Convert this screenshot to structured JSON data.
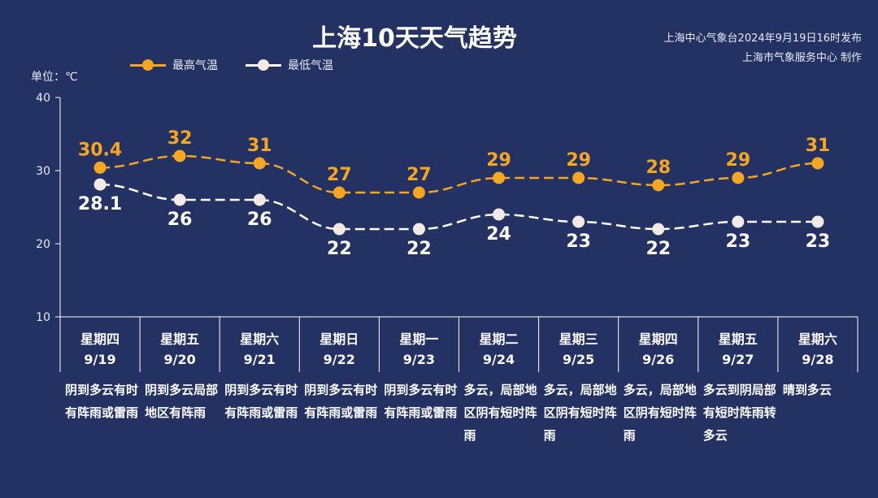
{
  "title": "上海10天天气趋势",
  "source": {
    "line1": "上海中心气象台2024年9月19日16时发布",
    "line2": "上海市气象服务中心 制作"
  },
  "unit_label": "单位：℃",
  "legend": {
    "high": "最高气温",
    "low": "最低气温"
  },
  "colors": {
    "background": "#243163",
    "high": "#f5a623",
    "low": "#ffffff",
    "low_marker": "#f3e9e6"
  },
  "days": [
    {
      "weekday": "星期四",
      "date": "9/19",
      "weather": "阴到多云有时有阵雨或雷雨"
    },
    {
      "weekday": "星期五",
      "date": "9/20",
      "weather": "阴到多云局部地区有阵雨"
    },
    {
      "weekday": "星期六",
      "date": "9/21",
      "weather": "阴到多云有时有阵雨或雷雨"
    },
    {
      "weekday": "星期日",
      "date": "9/22",
      "weather": "阴到多云有时有阵雨或雷雨"
    },
    {
      "weekday": "星期一",
      "date": "9/23",
      "weather": "阴到多云有时有阵雨或雷雨"
    },
    {
      "weekday": "星期二",
      "date": "9/24",
      "weather": "多云，局部地区阴有短时阵雨"
    },
    {
      "weekday": "星期三",
      "date": "9/25",
      "weather": "多云，局部地区阴有短时阵雨"
    },
    {
      "weekday": "星期四",
      "date": "9/26",
      "weather": "多云，局部地区阴有短时阵雨"
    },
    {
      "weekday": "星期五",
      "date": "9/27",
      "weather": "多云到阴局部有短时阵雨转多云"
    },
    {
      "weekday": "星期六",
      "date": "9/28",
      "weather": "晴到多云"
    }
  ],
  "chart_data": {
    "type": "line",
    "categories": [
      "9/19",
      "9/20",
      "9/21",
      "9/22",
      "9/23",
      "9/24",
      "9/25",
      "9/26",
      "9/27",
      "9/28"
    ],
    "series": [
      {
        "name": "最高气温",
        "values": [
          30.4,
          32,
          31,
          27,
          27,
          29,
          29,
          28,
          29,
          31
        ],
        "labels": [
          "30.4",
          "32",
          "31",
          "27",
          "27",
          "29",
          "29",
          "28",
          "29",
          "31"
        ]
      },
      {
        "name": "最低气温",
        "values": [
          28.1,
          26,
          26,
          22,
          22,
          24,
          23,
          22,
          23,
          23
        ],
        "labels": [
          "28.1",
          "26",
          "26",
          "22",
          "22",
          "24",
          "23",
          "22",
          "23",
          "23"
        ]
      }
    ],
    "ylim": [
      10,
      40
    ],
    "yticks": [
      "10",
      "20",
      "30",
      "40"
    ],
    "ylabel": "单位：℃",
    "line_style": "dashed",
    "legend_position": "top-left",
    "grid": false
  }
}
